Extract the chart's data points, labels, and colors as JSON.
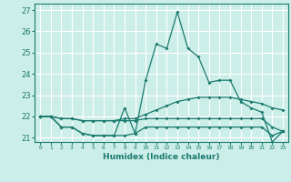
{
  "title": "",
  "xlabel": "Humidex (Indice chaleur)",
  "bg_color": "#cceee8",
  "line_color": "#1a7a6e",
  "grid_color": "#ffffff",
  "xlim": [
    -0.5,
    23.5
  ],
  "ylim": [
    20.8,
    27.3
  ],
  "yticks": [
    21,
    22,
    23,
    24,
    25,
    26,
    27
  ],
  "xticks": [
    0,
    1,
    2,
    3,
    4,
    5,
    6,
    7,
    8,
    9,
    10,
    11,
    12,
    13,
    14,
    15,
    16,
    17,
    18,
    19,
    20,
    21,
    22,
    23
  ],
  "series": {
    "line1": [
      22.0,
      22.0,
      21.5,
      21.5,
      21.2,
      21.1,
      21.1,
      21.1,
      22.4,
      21.2,
      23.7,
      25.4,
      25.2,
      26.9,
      25.2,
      24.8,
      23.6,
      23.7,
      23.7,
      22.7,
      22.4,
      22.2,
      20.8,
      21.3
    ],
    "line2": [
      22.0,
      22.0,
      21.5,
      21.5,
      21.2,
      21.1,
      21.1,
      21.1,
      21.1,
      21.2,
      21.5,
      21.5,
      21.5,
      21.5,
      21.5,
      21.5,
      21.5,
      21.5,
      21.5,
      21.5,
      21.5,
      21.5,
      21.1,
      21.3
    ],
    "line3": [
      22.0,
      22.0,
      21.9,
      21.9,
      21.8,
      21.8,
      21.8,
      21.8,
      21.9,
      21.9,
      22.1,
      22.3,
      22.5,
      22.7,
      22.8,
      22.9,
      22.9,
      22.9,
      22.9,
      22.8,
      22.7,
      22.6,
      22.4,
      22.3
    ],
    "line4": [
      22.0,
      22.0,
      21.9,
      21.9,
      21.8,
      21.8,
      21.8,
      21.8,
      21.8,
      21.8,
      21.9,
      21.9,
      21.9,
      21.9,
      21.9,
      21.9,
      21.9,
      21.9,
      21.9,
      21.9,
      21.9,
      21.9,
      21.5,
      21.3
    ]
  }
}
